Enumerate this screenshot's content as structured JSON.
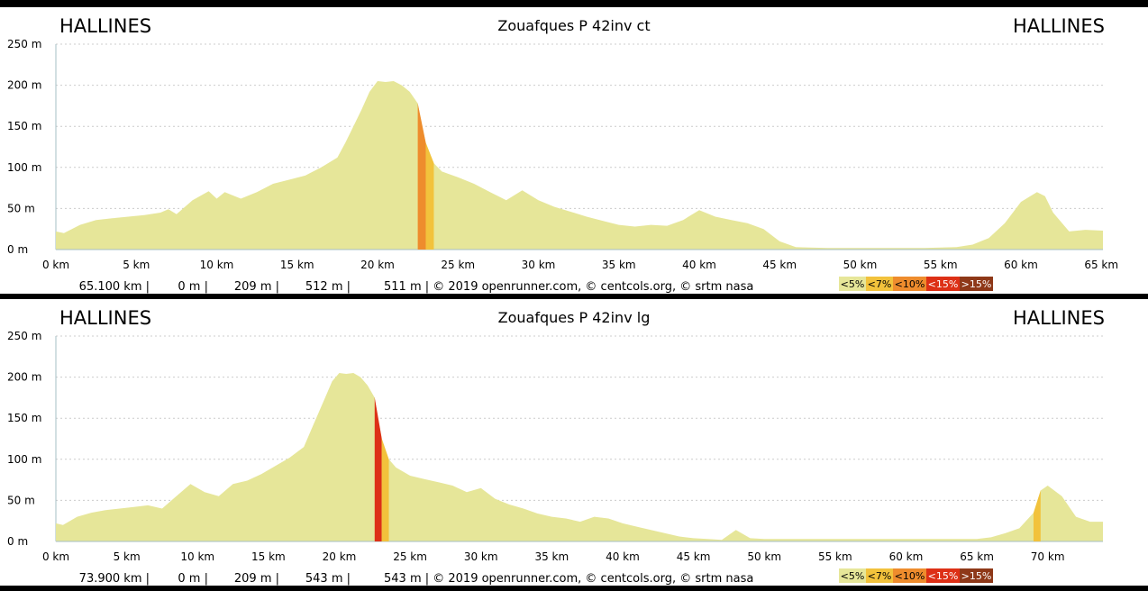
{
  "chart_data": [
    {
      "type": "area",
      "title": "Zouafques P 42inv ct",
      "start_label": "HALLINES",
      "end_label": "HALLINES",
      "x_unit": "km",
      "y_unit": "m",
      "xlim": [
        0,
        65.1
      ],
      "ylim": [
        0,
        250
      ],
      "x_ticks": [
        0,
        5,
        10,
        15,
        20,
        25,
        30,
        35,
        40,
        45,
        50,
        55,
        60,
        65
      ],
      "y_ticks": [
        0,
        50,
        100,
        150,
        200,
        250
      ],
      "grid": true,
      "series": [
        {
          "x": [
            0,
            0.5,
            1.5,
            2.5,
            3.5,
            4.5,
            5.5,
            6.5,
            7,
            7.5,
            8.5,
            9.5,
            10,
            10.5,
            11.5,
            12.5,
            13.5,
            14.5,
            15.5,
            16.5,
            17.5,
            18,
            18.5,
            19,
            19.5,
            20,
            20.5,
            21,
            21.5,
            22,
            22.5,
            23,
            23.5,
            24,
            25,
            26,
            27,
            28,
            29,
            30,
            31,
            32,
            33,
            34,
            35,
            36,
            37,
            38,
            39,
            40,
            41,
            42,
            43,
            44,
            45,
            46,
            48,
            50,
            52,
            54,
            56,
            57,
            58,
            59,
            60,
            61,
            61.5,
            62,
            63,
            64,
            65.1
          ],
          "y": [
            22,
            20,
            30,
            36,
            38,
            40,
            42,
            45,
            49,
            43,
            60,
            71,
            62,
            70,
            62,
            70,
            80,
            85,
            90,
            100,
            112,
            130,
            150,
            170,
            192,
            205,
            204,
            205,
            200,
            192,
            178,
            130,
            105,
            95,
            88,
            80,
            70,
            60,
            72,
            60,
            52,
            46,
            40,
            35,
            30,
            28,
            30,
            29,
            36,
            48,
            40,
            36,
            32,
            25,
            10,
            3,
            2,
            2,
            2,
            2,
            3,
            6,
            14,
            32,
            58,
            70,
            65,
            45,
            22,
            24,
            23
          ]
        }
      ],
      "footer": {
        "distance": "65.100 km |",
        "min": "0 m |",
        "max": "209 m |",
        "gain": "512 m |",
        "loss": "511 m | © 2019 openrunner.com, © centcols.org, © srtm nasa"
      },
      "legend": [
        "<5%",
        "<7%",
        "<10%",
        "<15%",
        ">15%"
      ]
    },
    {
      "type": "area",
      "title": "Zouafques P 42inv lg",
      "start_label": "HALLINES",
      "end_label": "HALLINES",
      "x_unit": "km",
      "y_unit": "m",
      "xlim": [
        0,
        73.9
      ],
      "ylim": [
        0,
        250
      ],
      "x_ticks": [
        0,
        5,
        10,
        15,
        20,
        25,
        30,
        35,
        40,
        45,
        50,
        55,
        60,
        65,
        70
      ],
      "y_ticks": [
        0,
        50,
        100,
        150,
        200,
        250
      ],
      "grid": true,
      "series": [
        {
          "x": [
            0,
            0.5,
            1.5,
            2.5,
            3.5,
            4.5,
            5.5,
            6.5,
            7.5,
            8.5,
            9.5,
            10.5,
            11.5,
            12.5,
            13.5,
            14.5,
            15.5,
            16.5,
            17.5,
            18,
            18.5,
            19,
            19.5,
            20,
            20.5,
            21,
            21.5,
            22,
            22.5,
            23,
            23.5,
            24,
            25,
            26,
            27,
            28,
            29,
            30,
            31,
            32,
            33,
            34,
            35,
            36,
            37,
            38,
            39,
            40,
            41,
            42,
            43,
            44,
            45,
            46,
            47,
            48,
            49,
            50,
            55,
            60,
            65,
            66,
            67,
            68,
            69,
            69.5,
            70,
            71,
            72,
            73,
            73.9
          ],
          "y": [
            22,
            20,
            30,
            35,
            38,
            40,
            42,
            44,
            40,
            55,
            70,
            60,
            55,
            70,
            74,
            82,
            92,
            102,
            115,
            135,
            155,
            175,
            195,
            205,
            204,
            205,
            200,
            190,
            175,
            125,
            100,
            90,
            80,
            76,
            72,
            68,
            60,
            65,
            52,
            45,
            40,
            34,
            30,
            28,
            24,
            30,
            28,
            22,
            18,
            14,
            10,
            6,
            4,
            3,
            2,
            14,
            4,
            3,
            3,
            3,
            3,
            5,
            10,
            16,
            35,
            62,
            68,
            55,
            30,
            24,
            24
          ]
        }
      ],
      "footer": {
        "distance": "73.900 km |",
        "min": "0 m |",
        "max": "209 m |",
        "gain": "543 m |",
        "loss": "543 m | © 2019 openrunner.com, © centcols.org, © srtm nasa"
      },
      "legend": [
        "<5%",
        "<7%",
        "<10%",
        "<15%",
        ">15%"
      ]
    }
  ],
  "colors": {
    "lt5": "#e6e699",
    "lt7": "#f2c23c",
    "lt10": "#ee8c2d",
    "lt15": "#dd3016",
    "gt15": "#8e3818",
    "frame": "#000000",
    "panel": "#ffffff",
    "grid": "#cccccc",
    "axis": "#a6bfc6"
  }
}
